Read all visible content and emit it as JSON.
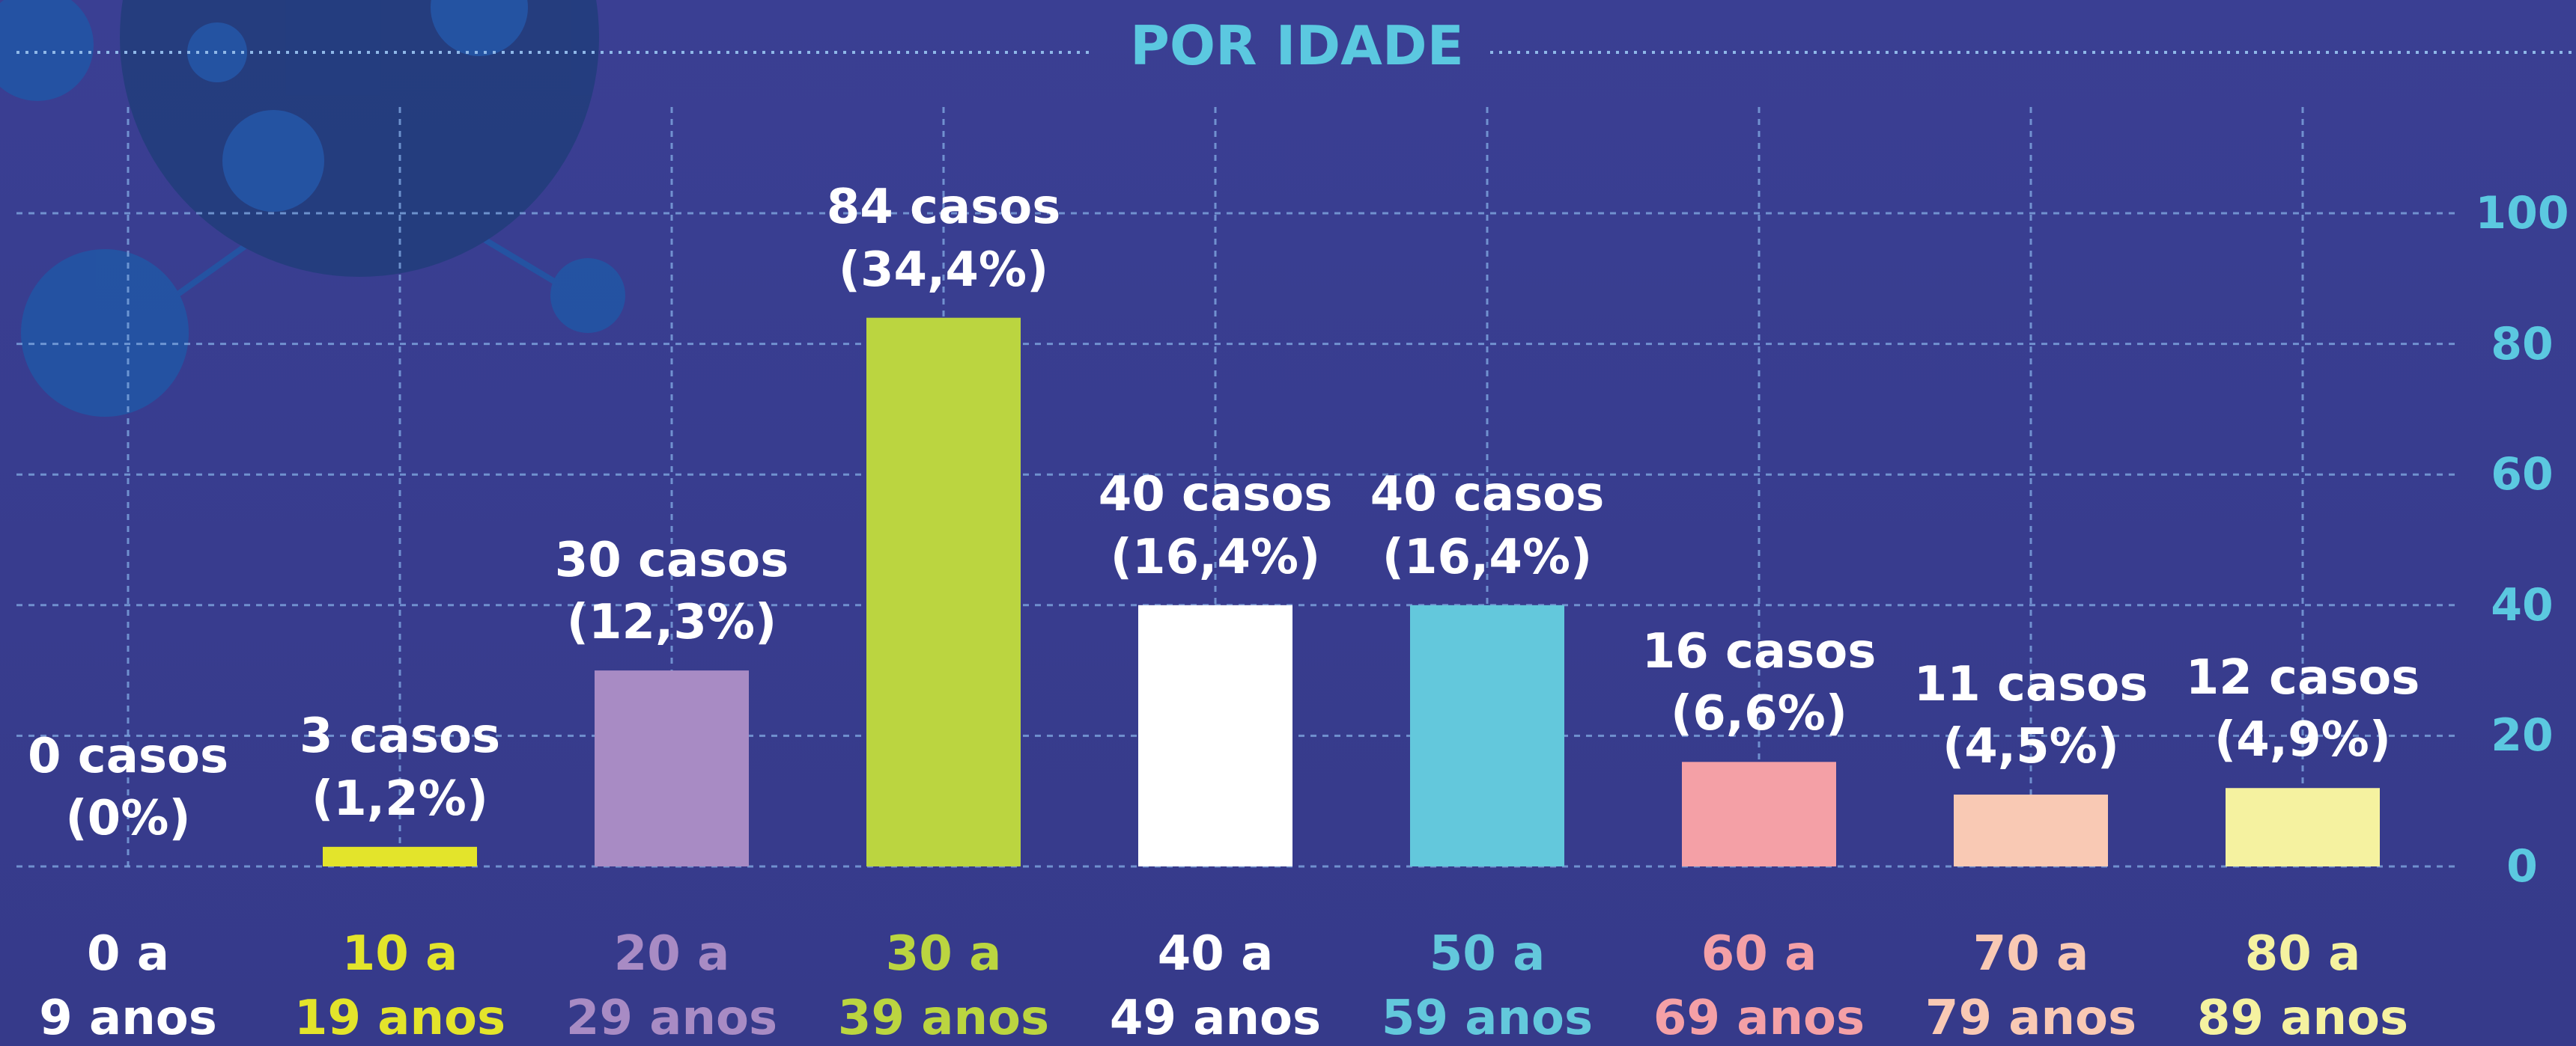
{
  "chart_data": {
    "type": "bar",
    "title": "POR IDADE",
    "categories": [
      "0 a\n9 anos",
      "10 a\n19 anos",
      "20 a\n29 anos",
      "30 a\n39 anos",
      "40 a\n49 anos",
      "50 a\n59 anos",
      "60 a\n69 anos",
      "70 a\n79 anos",
      "80 a\n89 anos"
    ],
    "values": [
      0,
      3,
      30,
      84,
      40,
      40,
      16,
      11,
      12
    ],
    "value_labels": [
      "0 casos\n(0%)",
      "3 casos\n(1,2%)",
      "30 casos\n(12,3%)",
      "84 casos\n(34,4%)",
      "40 casos\n(16,4%)",
      "40 casos\n(16,4%)",
      "16 casos\n(6,6%)",
      "11 casos\n(4,5%)",
      "12 casos\n(4,9%)"
    ],
    "colors": [
      "#ffffff",
      "#e3e42b",
      "#a88bc4",
      "#bbd540",
      "#ffffff",
      "#63c8dc",
      "#f4a0a6",
      "#f9c9b4",
      "#f5f2a0"
    ],
    "ylim": [
      0,
      100
    ],
    "yticks": [
      0,
      20,
      40,
      60,
      80,
      100
    ],
    "grid": true
  }
}
